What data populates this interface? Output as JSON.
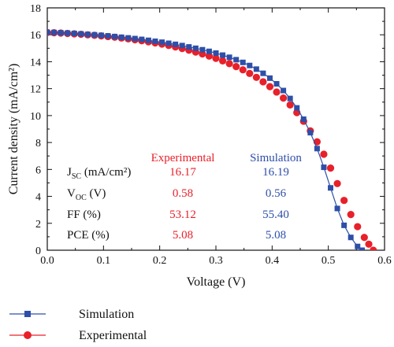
{
  "chart_data": {
    "type": "scatter",
    "title": "",
    "xlabel": "Voltage (V)",
    "ylabel": "Current density (mA/cm²)",
    "xlim": [
      0,
      0.6
    ],
    "ylim": [
      0,
      18
    ],
    "xticks": [
      "0.0",
      "0.1",
      "0.2",
      "0.3",
      "0.4",
      "0.5",
      "0.6"
    ],
    "yticks": [
      "0",
      "2",
      "4",
      "6",
      "8",
      "10",
      "12",
      "14",
      "16",
      "18"
    ],
    "grid": false,
    "legend_placement": "bottom-left",
    "series": [
      {
        "name": "Simulation",
        "color": "#2e4fa8",
        "marker": "square",
        "line": true,
        "x": [
          0.0,
          0.012,
          0.024,
          0.036,
          0.048,
          0.06,
          0.072,
          0.084,
          0.096,
          0.108,
          0.12,
          0.132,
          0.144,
          0.156,
          0.168,
          0.18,
          0.192,
          0.204,
          0.216,
          0.228,
          0.24,
          0.252,
          0.264,
          0.276,
          0.288,
          0.3,
          0.312,
          0.324,
          0.336,
          0.348,
          0.36,
          0.372,
          0.384,
          0.396,
          0.408,
          0.42,
          0.432,
          0.444,
          0.456,
          0.468,
          0.48,
          0.492,
          0.504,
          0.516,
          0.528,
          0.54,
          0.552,
          0.56
        ],
        "y": [
          16.19,
          16.17,
          16.15,
          16.13,
          16.1,
          16.07,
          16.03,
          16.0,
          15.96,
          15.92,
          15.87,
          15.82,
          15.77,
          15.72,
          15.66,
          15.59,
          15.52,
          15.45,
          15.37,
          15.29,
          15.2,
          15.1,
          15.0,
          14.89,
          14.77,
          14.64,
          14.49,
          14.33,
          14.15,
          13.95,
          13.72,
          13.45,
          13.14,
          12.78,
          12.36,
          11.86,
          11.27,
          10.57,
          9.73,
          8.73,
          7.55,
          6.16,
          4.63,
          3.1,
          1.85,
          0.95,
          0.28,
          0.0
        ]
      },
      {
        "name": "Experimental",
        "color": "#e8202a",
        "marker": "circle",
        "line": false,
        "x": [
          0.0,
          0.012,
          0.024,
          0.036,
          0.048,
          0.06,
          0.072,
          0.084,
          0.096,
          0.108,
          0.12,
          0.132,
          0.144,
          0.156,
          0.168,
          0.18,
          0.192,
          0.204,
          0.216,
          0.228,
          0.24,
          0.252,
          0.264,
          0.276,
          0.288,
          0.3,
          0.312,
          0.324,
          0.336,
          0.348,
          0.36,
          0.372,
          0.384,
          0.396,
          0.408,
          0.42,
          0.432,
          0.444,
          0.456,
          0.468,
          0.48,
          0.492,
          0.504,
          0.516,
          0.528,
          0.54,
          0.552,
          0.564,
          0.572,
          0.58
        ],
        "y": [
          16.17,
          16.15,
          16.13,
          16.1,
          16.07,
          16.04,
          16.0,
          15.96,
          15.92,
          15.87,
          15.82,
          15.76,
          15.7,
          15.63,
          15.56,
          15.48,
          15.4,
          15.31,
          15.21,
          15.1,
          14.98,
          14.86,
          14.72,
          14.58,
          14.42,
          14.25,
          14.06,
          13.86,
          13.64,
          13.4,
          13.13,
          12.84,
          12.51,
          12.15,
          11.75,
          11.3,
          10.79,
          10.22,
          9.58,
          8.86,
          8.05,
          7.13,
          6.1,
          4.95,
          3.7,
          2.65,
          1.75,
          0.95,
          0.45,
          0.0
        ]
      }
    ],
    "table": {
      "headers": [
        "Experimental",
        "Simulation"
      ],
      "header_colors": [
        "#e8202a",
        "#2e4fa8"
      ],
      "rows": [
        {
          "label_main": "J",
          "label_sub": "SC",
          "label_rest": " (mA/cm²)",
          "exp": "16.17",
          "sim": "16.19"
        },
        {
          "label_main": "V",
          "label_sub": "OC",
          "label_rest": " (V)",
          "exp": "0.58",
          "sim": "0.56"
        },
        {
          "label_main": "FF (%)",
          "label_sub": "",
          "label_rest": "",
          "exp": "53.12",
          "sim": "55.40"
        },
        {
          "label_main": "PCE (%)",
          "label_sub": "",
          "label_rest": "",
          "exp": "5.08",
          "sim": "5.08"
        }
      ]
    },
    "legend": [
      {
        "label": "Simulation",
        "color": "#2e4fa8",
        "marker": "square"
      },
      {
        "label": "Experimental",
        "color": "#e8202a",
        "marker": "circle"
      }
    ]
  }
}
